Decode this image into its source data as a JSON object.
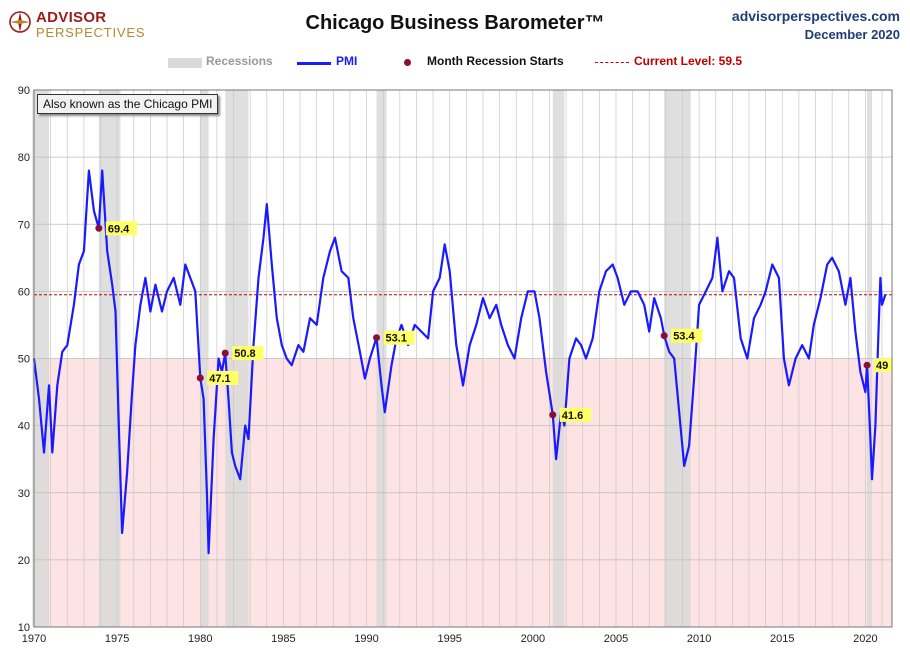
{
  "header": {
    "logo_line1": "ADVISOR",
    "logo_line2": "PERSPECTIVES",
    "title": "Chicago Business Barometer™",
    "site": "advisorperspectives.com",
    "date": "December 2020"
  },
  "legend": {
    "recessions": "Recessions",
    "pmi": "PMI",
    "recession_start": "Month Recession Starts",
    "current": "Current Level: 59.5"
  },
  "note": "Also known as the Chicago PMI",
  "colors": {
    "pmi_line": "#1a1aff",
    "recession_band": "#d9d9d9",
    "below50_fill": "#fde3e3",
    "marker": "#8b0d3a",
    "current_line": "#c00000",
    "label_bg": "#ffff66"
  },
  "chart_data": {
    "type": "line",
    "ylim": [
      10,
      90
    ],
    "yticks": [
      10,
      20,
      30,
      40,
      50,
      60,
      70,
      80,
      90
    ],
    "xlim": [
      1970,
      2021.6
    ],
    "xticks": [
      1970,
      1975,
      1980,
      1985,
      1990,
      1995,
      2000,
      2005,
      2010,
      2015,
      2020
    ],
    "current_level": 59.5,
    "shade_below": 50,
    "recessions": [
      [
        1969.9,
        1970.9
      ],
      [
        1973.9,
        1975.2
      ],
      [
        1980.0,
        1980.5
      ],
      [
        1981.5,
        1982.9
      ],
      [
        1990.6,
        1991.2
      ],
      [
        2001.2,
        2001.9
      ],
      [
        2007.9,
        2009.5
      ],
      [
        2020.1,
        2020.4
      ]
    ],
    "recession_starts": [
      {
        "x": 1973.9,
        "y": 69.4,
        "label": "69.4"
      },
      {
        "x": 1980.0,
        "y": 47.1,
        "label": "47.1"
      },
      {
        "x": 1981.5,
        "y": 50.8,
        "label": "50.8"
      },
      {
        "x": 1990.6,
        "y": 53.1,
        "label": "53.1"
      },
      {
        "x": 2001.2,
        "y": 41.6,
        "label": "41.6"
      },
      {
        "x": 2007.9,
        "y": 53.4,
        "label": "53.4"
      },
      {
        "x": 2020.1,
        "y": 49,
        "label": "49"
      }
    ],
    "series": [
      {
        "name": "PMI",
        "points": [
          [
            1970.0,
            50
          ],
          [
            1970.3,
            44
          ],
          [
            1970.6,
            36
          ],
          [
            1970.9,
            46
          ],
          [
            1971.1,
            36
          ],
          [
            1971.4,
            46
          ],
          [
            1971.7,
            51
          ],
          [
            1972.0,
            52
          ],
          [
            1972.4,
            58
          ],
          [
            1972.7,
            64
          ],
          [
            1973.0,
            66
          ],
          [
            1973.3,
            78
          ],
          [
            1973.6,
            72
          ],
          [
            1973.9,
            69.4
          ],
          [
            1974.1,
            78
          ],
          [
            1974.4,
            66
          ],
          [
            1974.7,
            61
          ],
          [
            1974.9,
            57
          ],
          [
            1975.1,
            40
          ],
          [
            1975.3,
            24
          ],
          [
            1975.6,
            33
          ],
          [
            1975.9,
            45
          ],
          [
            1976.1,
            52
          ],
          [
            1976.4,
            58
          ],
          [
            1976.7,
            62
          ],
          [
            1977.0,
            57
          ],
          [
            1977.3,
            61
          ],
          [
            1977.7,
            57
          ],
          [
            1978.0,
            60
          ],
          [
            1978.4,
            62
          ],
          [
            1978.8,
            58
          ],
          [
            1979.1,
            64
          ],
          [
            1979.4,
            62
          ],
          [
            1979.7,
            60
          ],
          [
            1980.0,
            47.1
          ],
          [
            1980.2,
            44
          ],
          [
            1980.4,
            30
          ],
          [
            1980.5,
            21
          ],
          [
            1980.8,
            38
          ],
          [
            1981.1,
            50
          ],
          [
            1981.3,
            48
          ],
          [
            1981.5,
            50.8
          ],
          [
            1981.7,
            44
          ],
          [
            1981.9,
            36
          ],
          [
            1982.1,
            34
          ],
          [
            1982.4,
            32
          ],
          [
            1982.7,
            40
          ],
          [
            1982.9,
            38
          ],
          [
            1983.2,
            52
          ],
          [
            1983.5,
            62
          ],
          [
            1983.8,
            68
          ],
          [
            1984.0,
            73
          ],
          [
            1984.3,
            64
          ],
          [
            1984.6,
            56
          ],
          [
            1984.9,
            52
          ],
          [
            1985.2,
            50
          ],
          [
            1985.5,
            49
          ],
          [
            1985.9,
            52
          ],
          [
            1986.2,
            51
          ],
          [
            1986.6,
            56
          ],
          [
            1987.0,
            55
          ],
          [
            1987.4,
            62
          ],
          [
            1987.8,
            66
          ],
          [
            1988.1,
            68
          ],
          [
            1988.5,
            63
          ],
          [
            1988.9,
            62
          ],
          [
            1989.2,
            56
          ],
          [
            1989.6,
            51
          ],
          [
            1989.9,
            47
          ],
          [
            1990.2,
            50
          ],
          [
            1990.6,
            53.1
          ],
          [
            1990.9,
            46
          ],
          [
            1991.1,
            42
          ],
          [
            1991.5,
            49
          ],
          [
            1991.8,
            53
          ],
          [
            1992.1,
            55
          ],
          [
            1992.5,
            52
          ],
          [
            1992.9,
            55
          ],
          [
            1993.3,
            54
          ],
          [
            1993.7,
            53
          ],
          [
            1994.0,
            60
          ],
          [
            1994.4,
            62
          ],
          [
            1994.7,
            67
          ],
          [
            1995.0,
            63
          ],
          [
            1995.4,
            52
          ],
          [
            1995.8,
            46
          ],
          [
            1996.2,
            52
          ],
          [
            1996.6,
            55
          ],
          [
            1997.0,
            59
          ],
          [
            1997.4,
            56
          ],
          [
            1997.8,
            58
          ],
          [
            1998.1,
            55
          ],
          [
            1998.5,
            52
          ],
          [
            1998.9,
            50
          ],
          [
            1999.3,
            56
          ],
          [
            1999.7,
            60
          ],
          [
            2000.1,
            60
          ],
          [
            2000.4,
            56
          ],
          [
            2000.8,
            48
          ],
          [
            2001.2,
            41.6
          ],
          [
            2001.4,
            35
          ],
          [
            2001.7,
            42
          ],
          [
            2001.9,
            40
          ],
          [
            2002.2,
            50
          ],
          [
            2002.6,
            53
          ],
          [
            2002.9,
            52
          ],
          [
            2003.2,
            50
          ],
          [
            2003.6,
            53
          ],
          [
            2004.0,
            60
          ],
          [
            2004.4,
            63
          ],
          [
            2004.8,
            64
          ],
          [
            2005.1,
            62
          ],
          [
            2005.5,
            58
          ],
          [
            2005.9,
            60
          ],
          [
            2006.3,
            60
          ],
          [
            2006.7,
            58
          ],
          [
            2007.0,
            54
          ],
          [
            2007.3,
            59
          ],
          [
            2007.7,
            56
          ],
          [
            2007.9,
            53.4
          ],
          [
            2008.2,
            51
          ],
          [
            2008.5,
            50
          ],
          [
            2008.8,
            42
          ],
          [
            2009.1,
            34
          ],
          [
            2009.4,
            37
          ],
          [
            2009.7,
            47
          ],
          [
            2010.0,
            58
          ],
          [
            2010.4,
            60
          ],
          [
            2010.8,
            62
          ],
          [
            2011.1,
            68
          ],
          [
            2011.4,
            60
          ],
          [
            2011.8,
            63
          ],
          [
            2012.1,
            62
          ],
          [
            2012.5,
            53
          ],
          [
            2012.9,
            50
          ],
          [
            2013.3,
            56
          ],
          [
            2013.7,
            58
          ],
          [
            2014.0,
            60
          ],
          [
            2014.4,
            64
          ],
          [
            2014.8,
            62
          ],
          [
            2015.1,
            50
          ],
          [
            2015.4,
            46
          ],
          [
            2015.8,
            50
          ],
          [
            2016.2,
            52
          ],
          [
            2016.6,
            50
          ],
          [
            2016.9,
            55
          ],
          [
            2017.3,
            59
          ],
          [
            2017.7,
            64
          ],
          [
            2018.0,
            65
          ],
          [
            2018.4,
            63
          ],
          [
            2018.8,
            58
          ],
          [
            2019.1,
            62
          ],
          [
            2019.4,
            54
          ],
          [
            2019.7,
            48
          ],
          [
            2020.0,
            45
          ],
          [
            2020.1,
            49
          ],
          [
            2020.3,
            38
          ],
          [
            2020.4,
            32
          ],
          [
            2020.6,
            40
          ],
          [
            2020.8,
            55
          ],
          [
            2020.9,
            62
          ],
          [
            2021.0,
            58
          ],
          [
            2021.2,
            59.5
          ]
        ]
      }
    ]
  }
}
